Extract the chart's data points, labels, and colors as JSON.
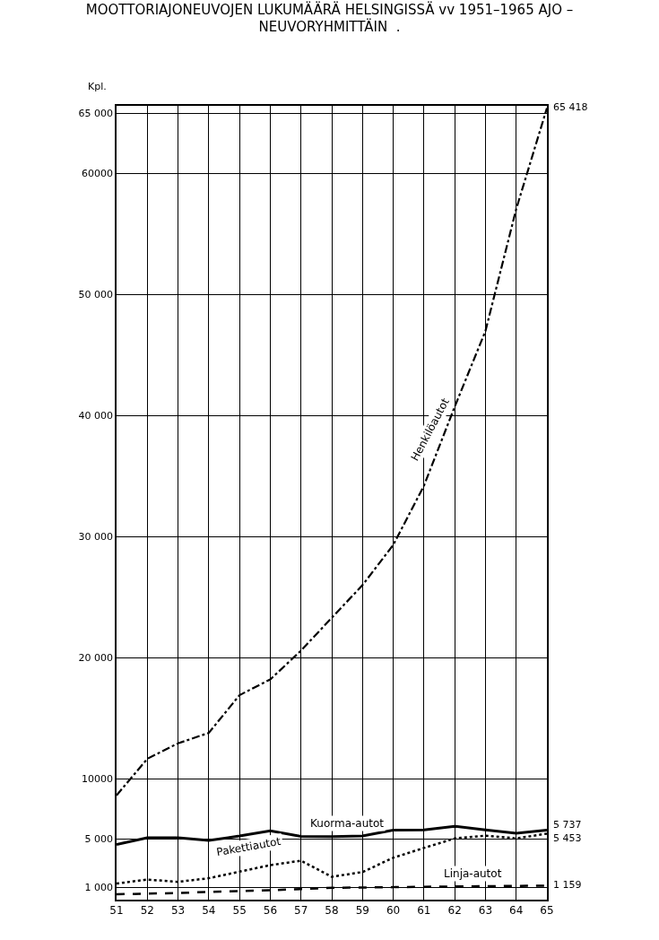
{
  "chart_data": {
    "type": "line",
    "title": "MOOTTORIAJONEUVOJEN LUKUMÄÄRÄ HELSINGISSÄ vv 1951–1965 AJO –\nNEUVORYHMITTÄIN  .",
    "ylabel": "Kpl.",
    "categories": [
      "51",
      "52",
      "53",
      "54",
      "55",
      "56",
      "57",
      "58",
      "59",
      "60",
      "61",
      "62",
      "63",
      "64",
      "65"
    ],
    "ylim": [
      0,
      65600
    ],
    "yticks": [
      {
        "value": 1000,
        "label": "1 000"
      },
      {
        "value": 5000,
        "label": "5 000"
      },
      {
        "value": 10000,
        "label": "10000"
      },
      {
        "value": 20000,
        "label": "20 000"
      },
      {
        "value": 30000,
        "label": "30 000"
      },
      {
        "value": 40000,
        "label": "40 000"
      },
      {
        "value": 50000,
        "label": "50 000"
      },
      {
        "value": 60000,
        "label": "60000"
      },
      {
        "value": 65000,
        "label": "65 000"
      }
    ],
    "grid": true,
    "legend": false,
    "marker": "none",
    "series": [
      {
        "name": "Henkilöautot",
        "color": "#000000",
        "line_style": "dashdot",
        "values": [
          8620,
          11640,
          12920,
          13780,
          16900,
          18200,
          20580,
          23290,
          25990,
          29310,
          34210,
          40730,
          46990,
          57060,
          65418
        ],
        "value_labels": [
          null,
          null,
          null,
          null,
          null,
          null,
          null,
          null,
          null,
          null,
          null,
          null,
          null,
          null,
          "65 418"
        ]
      },
      {
        "name": "Kuorma-autot",
        "color": "#000000",
        "line_style": "solid",
        "values": [
          4550,
          5120,
          5120,
          4890,
          5260,
          5690,
          5230,
          5200,
          5260,
          5750,
          5770,
          6060,
          5770,
          5490,
          5737
        ],
        "value_labels": [
          null,
          null,
          null,
          null,
          null,
          null,
          null,
          null,
          null,
          null,
          null,
          null,
          null,
          null,
          "5 737"
        ]
      },
      {
        "name": "Pakettiautot",
        "color": "#000000",
        "line_style": "dotted",
        "values": [
          1330,
          1660,
          1470,
          1770,
          2310,
          2850,
          3220,
          1890,
          2280,
          3460,
          4270,
          5060,
          5290,
          5060,
          5453
        ],
        "value_labels": [
          null,
          null,
          null,
          null,
          null,
          null,
          null,
          null,
          null,
          null,
          null,
          null,
          null,
          null,
          "5 453"
        ]
      },
      {
        "name": "Linja-autot",
        "color": "#000000",
        "line_style": "dashed",
        "values": [
          440,
          500,
          540,
          640,
          700,
          780,
          870,
          980,
          1000,
          1030,
          1060,
          1090,
          1110,
          1130,
          1159
        ],
        "value_labels": [
          null,
          null,
          null,
          null,
          null,
          null,
          null,
          null,
          null,
          null,
          null,
          null,
          null,
          null,
          "1 159"
        ]
      }
    ]
  }
}
